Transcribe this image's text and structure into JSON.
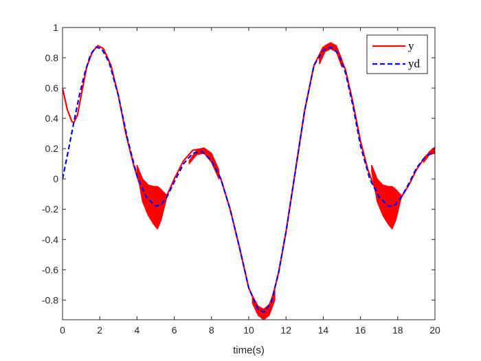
{
  "chart_data": {
    "type": "line",
    "title": "",
    "xlabel": "time(s)",
    "ylabel": "",
    "xlim": [
      0,
      20
    ],
    "ylim": [
      -0.93,
      1.0
    ],
    "x_ticks": [
      0,
      2,
      4,
      6,
      8,
      10,
      12,
      14,
      16,
      18,
      20
    ],
    "x_tick_labels": [
      "0",
      "2",
      "4",
      "6",
      "8",
      "10",
      "12",
      "14",
      "16",
      "18",
      "20"
    ],
    "y_ticks": [
      1,
      0.8,
      0.6,
      0.4,
      0.2,
      0,
      -0.2,
      -0.4,
      -0.6,
      -0.8
    ],
    "y_tick_labels": [
      "1",
      "0.8",
      "0.6",
      "0.4",
      "0.2",
      "0",
      "-0.2",
      "-0.4",
      "-0.6",
      "-0.8"
    ],
    "grid": false,
    "legend_position": "top-right",
    "series": [
      {
        "name": "y",
        "color": "#ff0000",
        "style": "solid",
        "x": [
          0,
          0.25,
          0.5,
          0.6,
          0.8,
          1.0,
          1.3,
          1.6,
          1.9,
          2.2,
          2.6,
          3.0,
          3.4,
          3.8,
          4.1,
          4.4,
          4.7,
          5.0,
          5.3,
          5.6,
          6.0,
          6.5,
          7.0,
          7.5,
          8.0,
          8.5,
          9.0,
          9.5,
          10.0,
          10.5,
          10.8,
          11.2,
          11.6,
          12.0,
          12.5,
          13.0,
          13.5,
          14.0,
          14.4,
          14.8,
          15.2,
          15.6,
          16.0,
          16.4,
          16.7,
          17.0,
          17.3,
          17.6,
          17.9,
          18.2,
          18.6,
          19.0,
          19.5,
          20.0
        ],
        "values": [
          0.6,
          0.46,
          0.38,
          0.37,
          0.42,
          0.55,
          0.74,
          0.84,
          0.88,
          0.86,
          0.75,
          0.55,
          0.3,
          0.1,
          -0.02,
          -0.1,
          -0.15,
          -0.18,
          -0.17,
          -0.11,
          0.0,
          0.12,
          0.19,
          0.2,
          0.14,
          0.0,
          -0.2,
          -0.45,
          -0.72,
          -0.86,
          -0.88,
          -0.82,
          -0.62,
          -0.35,
          0.05,
          0.45,
          0.75,
          0.87,
          0.88,
          0.84,
          0.72,
          0.5,
          0.25,
          0.06,
          -0.04,
          -0.11,
          -0.15,
          -0.18,
          -0.16,
          -0.12,
          -0.04,
          0.06,
          0.15,
          0.2
        ],
        "oscillation_bands": [
          {
            "x": [
              4.0,
              4.3,
              4.6,
              4.9,
              5.1,
              5.3,
              5.6
            ],
            "upper": [
              0.09,
              0.0,
              -0.04,
              -0.05,
              -0.05,
              -0.07,
              -0.11
            ],
            "lower": [
              0.05,
              -0.15,
              -0.24,
              -0.3,
              -0.33,
              -0.27,
              -0.12
            ]
          },
          {
            "x": [
              6.8,
              7.2,
              7.6,
              8.0,
              8.4
            ],
            "upper": [
              0.12,
              0.19,
              0.205,
              0.17,
              0.06
            ],
            "lower": [
              0.1,
              0.16,
              0.17,
              0.11,
              0.0
            ]
          },
          {
            "x": [
              10.2,
              10.5,
              10.8,
              11.1,
              11.4
            ],
            "upper": [
              -0.77,
              -0.84,
              -0.86,
              -0.83,
              -0.73
            ],
            "lower": [
              -0.82,
              -0.9,
              -0.93,
              -0.9,
              -0.8
            ]
          },
          {
            "x": [
              13.8,
              14.1,
              14.4,
              14.7,
              15.0
            ],
            "upper": [
              0.8,
              0.88,
              0.9,
              0.88,
              0.79
            ],
            "lower": [
              0.76,
              0.84,
              0.86,
              0.84,
              0.74
            ]
          },
          {
            "x": [
              16.6,
              16.9,
              17.2,
              17.5,
              17.7,
              17.9,
              18.2
            ],
            "upper": [
              0.09,
              0.0,
              -0.04,
              -0.05,
              -0.05,
              -0.07,
              -0.11
            ],
            "lower": [
              0.05,
              -0.15,
              -0.24,
              -0.3,
              -0.33,
              -0.27,
              -0.12
            ]
          },
          {
            "x": [
              19.4,
              19.7,
              20.0
            ],
            "upper": [
              0.13,
              0.18,
              0.21
            ],
            "lower": [
              0.11,
              0.16,
              0.17
            ]
          }
        ]
      },
      {
        "name": "yd",
        "color": "#0000ff",
        "style": "dashed",
        "x": [
          0,
          0.3,
          0.6,
          0.9,
          1.2,
          1.5,
          1.8,
          2.1,
          2.5,
          3.0,
          3.5,
          4.0,
          4.5,
          5.0,
          5.3,
          5.6,
          6.0,
          6.5,
          7.0,
          7.5,
          8.0,
          8.5,
          9.0,
          9.5,
          10.0,
          10.5,
          10.8,
          11.2,
          11.6,
          12.0,
          12.5,
          13.0,
          13.5,
          14.0,
          14.4,
          14.8,
          15.2,
          15.6,
          16.0,
          16.5,
          17.0,
          17.5,
          17.8,
          18.2,
          18.6,
          19.0,
          19.5,
          20.0
        ],
        "values": [
          0.0,
          0.18,
          0.37,
          0.55,
          0.7,
          0.82,
          0.87,
          0.86,
          0.77,
          0.55,
          0.26,
          0.02,
          -0.12,
          -0.18,
          -0.17,
          -0.12,
          -0.02,
          0.1,
          0.17,
          0.18,
          0.12,
          0.0,
          -0.2,
          -0.45,
          -0.72,
          -0.86,
          -0.88,
          -0.82,
          -0.62,
          -0.35,
          0.05,
          0.45,
          0.75,
          0.85,
          0.87,
          0.83,
          0.7,
          0.48,
          0.22,
          0.0,
          -0.12,
          -0.18,
          -0.18,
          -0.12,
          -0.03,
          0.07,
          0.15,
          0.18
        ]
      }
    ]
  }
}
